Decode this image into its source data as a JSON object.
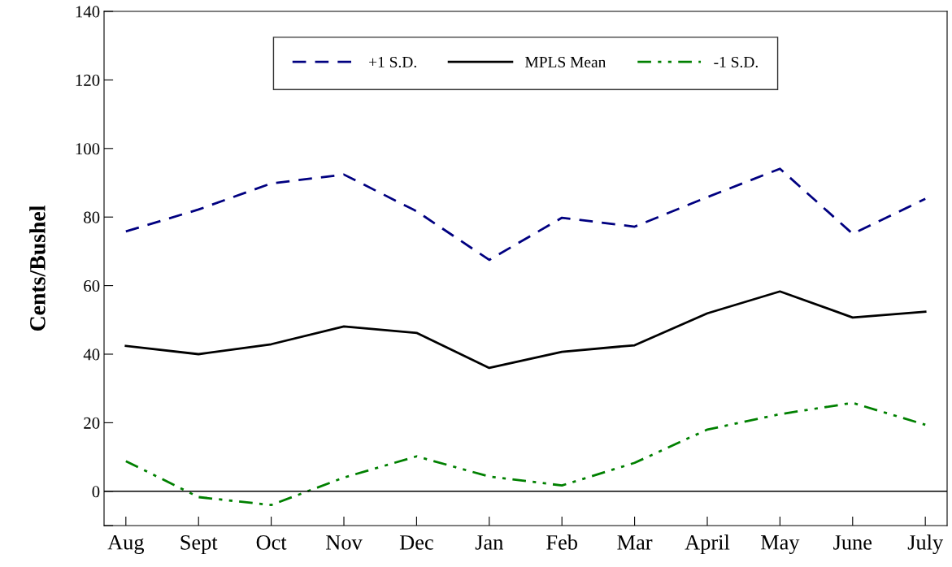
{
  "chart_data": {
    "type": "line",
    "ylabel": "Cents/Bushel",
    "categories": [
      "Aug",
      "Sept",
      "Oct",
      "Nov",
      "Dec",
      "Jan",
      "Feb",
      "Mar",
      "April",
      "May",
      "June",
      "July"
    ],
    "series": [
      {
        "name": "+1 S.D.",
        "color": "#000080",
        "line_style": "dashed",
        "values": [
          75.8,
          82.2,
          89.8,
          92.4,
          81.7,
          67.5,
          79.8,
          77.2,
          85.8,
          94.1,
          75.1,
          85.3
        ]
      },
      {
        "name": "MPLS Mean",
        "color": "#000000",
        "line_style": "solid",
        "values": [
          42.4,
          40.0,
          42.9,
          48.1,
          46.2,
          36.0,
          40.7,
          42.6,
          51.9,
          58.3,
          50.7,
          52.4
        ]
      },
      {
        "name": "-1 S.D.",
        "color": "#008000",
        "line_style": "dashdot",
        "values": [
          8.8,
          -1.7,
          -4.0,
          4.0,
          10.2,
          4.3,
          1.7,
          8.3,
          18.0,
          22.5,
          25.8,
          19.4
        ]
      }
    ],
    "ylim": [
      -10,
      140
    ],
    "yticks": [
      {
        "value": -10,
        "label": null
      },
      0,
      20,
      40,
      60,
      80,
      100,
      120,
      140
    ],
    "ref_lines": [
      {
        "axis": "y",
        "value": 0,
        "color": "#000000",
        "line_style": "solid"
      }
    ],
    "grid": false,
    "legend": "top",
    "marker": "none"
  }
}
